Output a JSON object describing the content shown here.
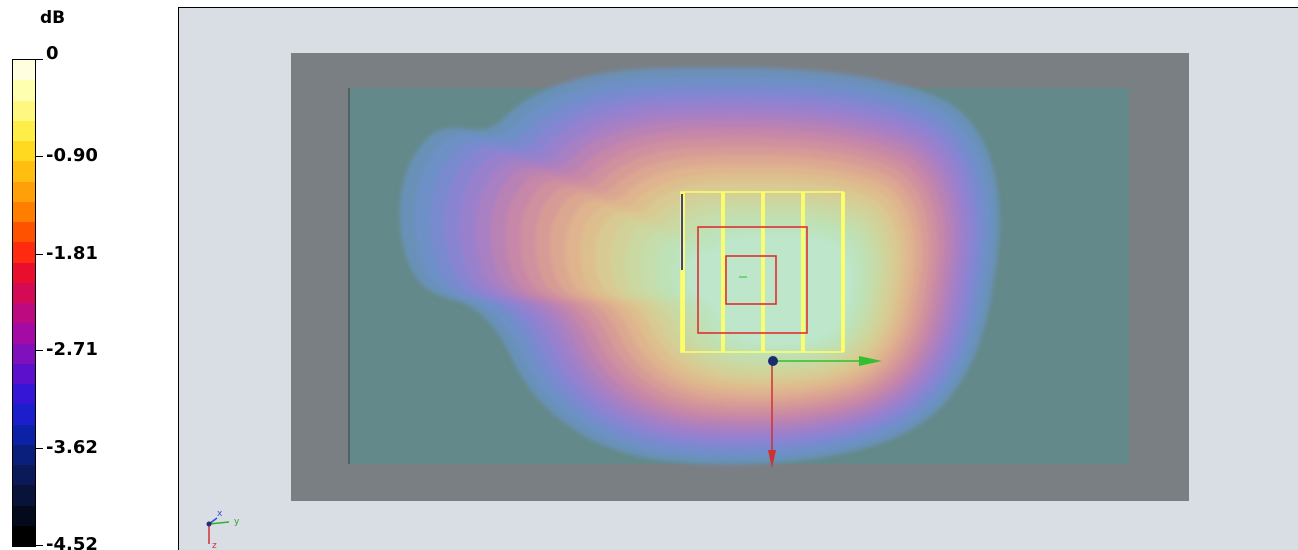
{
  "legend": {
    "unit": "dB",
    "ticks": [
      {
        "label": "0",
        "value": 0
      },
      {
        "label": "-0.90",
        "value": -0.9
      },
      {
        "label": "-1.81",
        "value": -1.81
      },
      {
        "label": "-2.71",
        "value": -2.71
      },
      {
        "label": "-3.62",
        "value": -3.62
      },
      {
        "label": "-4.52",
        "value": -4.52
      }
    ],
    "min": -4.52,
    "max": 0,
    "colors_top_to_bottom": [
      "#ffffe0",
      "#ffffb0",
      "#fff880",
      "#ffee48",
      "#ffd820",
      "#ffbe10",
      "#ffa008",
      "#ff7e00",
      "#ff5200",
      "#ff2a10",
      "#ea0e2e",
      "#d40a55",
      "#bd0a80",
      "#a40aa4",
      "#8010bc",
      "#5c10cc",
      "#3616d6",
      "#1c1ecc",
      "#0c22a6",
      "#0a1f7c",
      "#0a1a58",
      "#08133a",
      "#040a1c",
      "#000000"
    ]
  },
  "viewport": {
    "background": "#d9dee5",
    "substrate_color": "#7a7f84",
    "ground_color": "#64898a",
    "patch_color": "#ffff66",
    "port_color": "#e03030",
    "axis_x_color": "#30c030",
    "axis_z_color": "#d03030",
    "field_colors_outer_to_inner": [
      "#6a93c0",
      "#6f90c8",
      "#7a8ad0",
      "#8a84d2",
      "#9a80cc",
      "#a97fc2",
      "#b882b4",
      "#c687a8",
      "#d0909e",
      "#d79c96",
      "#dca890",
      "#deb48e",
      "#dcc08e",
      "#d7ca92",
      "#d1d29a",
      "#cad8a2",
      "#c4ddac",
      "#bfe0b6",
      "#bde3c0",
      "#bde6ca"
    ]
  },
  "orientation_triad": {
    "y_label": "y",
    "x_label": "x",
    "z_label": "z"
  }
}
